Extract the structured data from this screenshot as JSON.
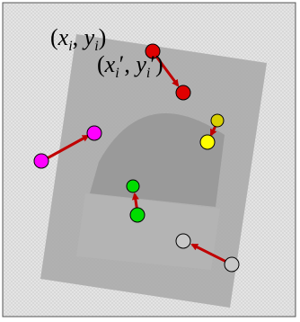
{
  "labels": [
    {
      "parts": [
        {
          "text": "("
        },
        {
          "text": "x",
          "italic": true
        },
        {
          "text": "i",
          "italic": true,
          "sub": true
        },
        {
          "text": ", "
        },
        {
          "text": "y",
          "italic": true
        },
        {
          "text": "i",
          "italic": true,
          "sub": true
        },
        {
          "text": ")"
        }
      ]
    },
    {
      "parts": [
        {
          "text": "("
        },
        {
          "text": "x",
          "italic": true
        },
        {
          "text": "i",
          "italic": true,
          "sub": true
        },
        {
          "text": "′, "
        },
        {
          "text": "y",
          "italic": true
        },
        {
          "text": "i",
          "italic": true,
          "sub": true
        },
        {
          "text": "′)"
        }
      ]
    }
  ]
}
